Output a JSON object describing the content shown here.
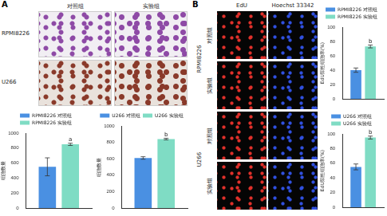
{
  "panels": [
    {
      "label": "A",
      "image_grid": {
        "columns": [
          "对照组",
          "实验组"
        ],
        "rows": [
          "RPMI8226",
          "U266"
        ]
      }
    },
    {
      "label": "B",
      "image_grid": {
        "columns": [
          "EdU",
          "Hoechst 33342"
        ],
        "rows": [
          {
            "cell_line": "RPMI8226",
            "groups": [
              "对照组",
              "实验组"
            ]
          },
          {
            "cell_line": "U266",
            "groups": [
              "对照组",
              "实验组"
            ]
          }
        ]
      }
    }
  ],
  "chart_data": [
    {
      "type": "bar",
      "categories": [
        null
      ],
      "ylabel": "细胞数量",
      "series": [
        {
          "name": "RPMI8226 对照组",
          "color": "#4a90e2",
          "values": [
            550
          ],
          "errors": [
            120
          ]
        },
        {
          "name": "RPMI8226 实验组",
          "color": "#7fdcc4",
          "values": [
            850
          ],
          "errors": [
            15
          ],
          "annotation": "a"
        }
      ],
      "ylim": [
        0,
        1000
      ],
      "yticks": [
        0,
        200,
        400,
        600,
        800,
        1000
      ],
      "grid": false,
      "legend": "top",
      "tick_labels": "y"
    },
    {
      "type": "bar",
      "categories": [
        null
      ],
      "ylabel": "细胞数量",
      "series": [
        {
          "name": "U266 对照组",
          "color": "#4a90e2",
          "values": [
            610
          ],
          "errors": [
            15
          ]
        },
        {
          "name": "U266 实验组",
          "color": "#7fdcc4",
          "values": [
            840
          ],
          "errors": [
            10
          ],
          "annotation": "b"
        }
      ],
      "ylim": [
        0,
        1000
      ],
      "yticks": [
        0,
        200,
        400,
        600,
        800,
        1000
      ],
      "grid": false,
      "legend": "top",
      "tick_labels": "y"
    },
    {
      "type": "bar",
      "categories": [
        null
      ],
      "ylabel": "EdU阳性细胞率(%)",
      "series": [
        {
          "name": "RPMI8226 对照组",
          "color": "#4a90e2",
          "values": [
            40
          ],
          "errors": [
            3
          ]
        },
        {
          "name": "RPMI8226 实验组",
          "color": "#7fdcc4",
          "values": [
            73
          ],
          "errors": [
            2
          ],
          "annotation": "b"
        }
      ],
      "ylim": [
        0,
        100
      ],
      "yticks": [
        0,
        20,
        40,
        60,
        80,
        100
      ],
      "grid": false,
      "legend": "top",
      "tick_labels": "y"
    },
    {
      "type": "bar",
      "categories": [
        null
      ],
      "ylabel": "EdU阳性细胞率(%)",
      "series": [
        {
          "name": "U266 对照组",
          "color": "#4a90e2",
          "values": [
            55
          ],
          "errors": [
            4
          ]
        },
        {
          "name": "U266 实验组",
          "color": "#7fdcc4",
          "values": [
            95
          ],
          "errors": [
            2
          ],
          "annotation": "b"
        }
      ],
      "ylim": [
        0,
        100
      ],
      "yticks": [
        0,
        20,
        40,
        60,
        80,
        100
      ],
      "grid": false,
      "legend": "top",
      "tick_labels": "y"
    }
  ]
}
